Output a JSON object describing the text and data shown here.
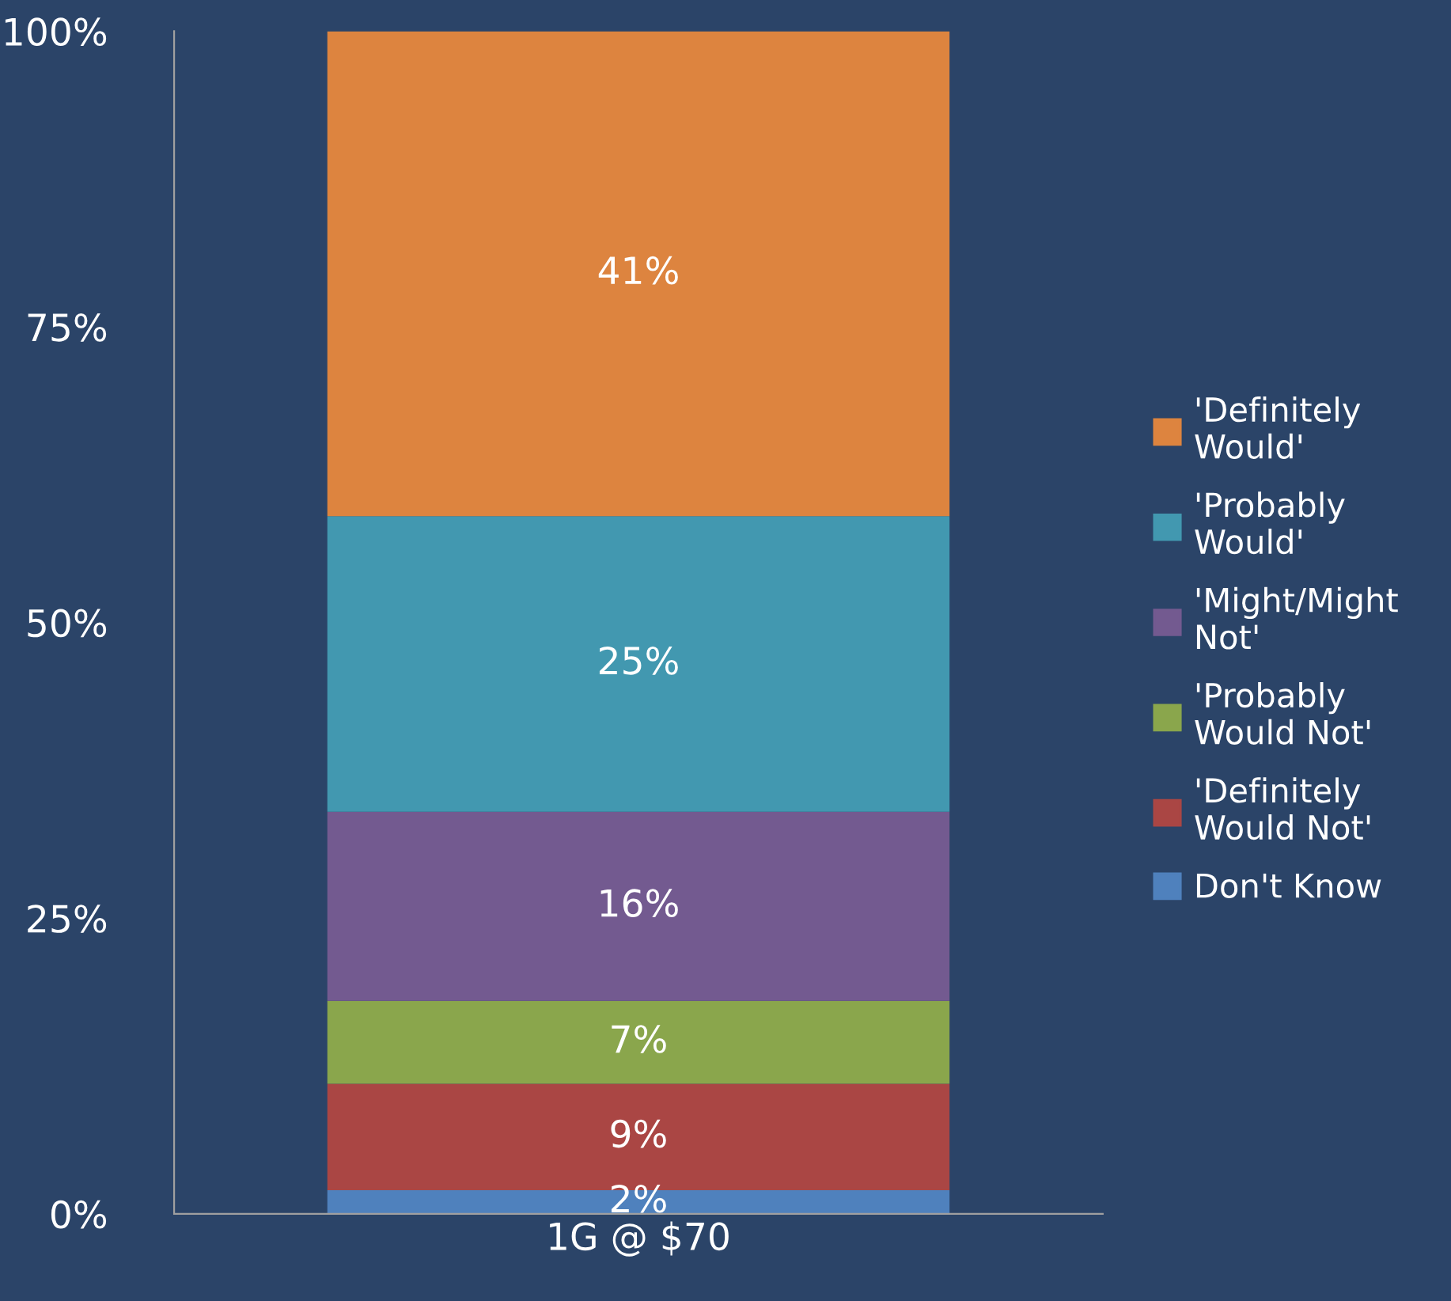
{
  "chart_data": {
    "type": "bar",
    "stacked": true,
    "categories": [
      "1G @ $70"
    ],
    "series": [
      {
        "name": "Don't Know",
        "color": "#4f81bd",
        "values": [
          2
        ],
        "value_labels": [
          "2%"
        ]
      },
      {
        "name": "'Definitely Would Not'",
        "color": "#aa4644",
        "values": [
          9
        ],
        "value_labels": [
          "9%"
        ]
      },
      {
        "name": "'Probably Would Not'",
        "color": "#8aa64c",
        "values": [
          7
        ],
        "value_labels": [
          "7%"
        ]
      },
      {
        "name": "'Might/Might Not'",
        "color": "#735a90",
        "values": [
          16
        ],
        "value_labels": [
          "16%"
        ]
      },
      {
        "name": "'Probably Would'",
        "color": "#4298b0",
        "values": [
          25
        ],
        "value_labels": [
          "25%"
        ]
      },
      {
        "name": "'Definitely Would'",
        "color": "#dd843f",
        "values": [
          41
        ],
        "value_labels": [
          "41%"
        ]
      }
    ],
    "ylim": [
      0,
      100
    ],
    "yticks": [
      {
        "value": 0,
        "label": "0%"
      },
      {
        "value": 25,
        "label": "25%"
      },
      {
        "value": 50,
        "label": "50%"
      },
      {
        "value": 75,
        "label": "75%"
      },
      {
        "value": 100,
        "label": "100%"
      }
    ],
    "grid": false,
    "legend": "right"
  }
}
